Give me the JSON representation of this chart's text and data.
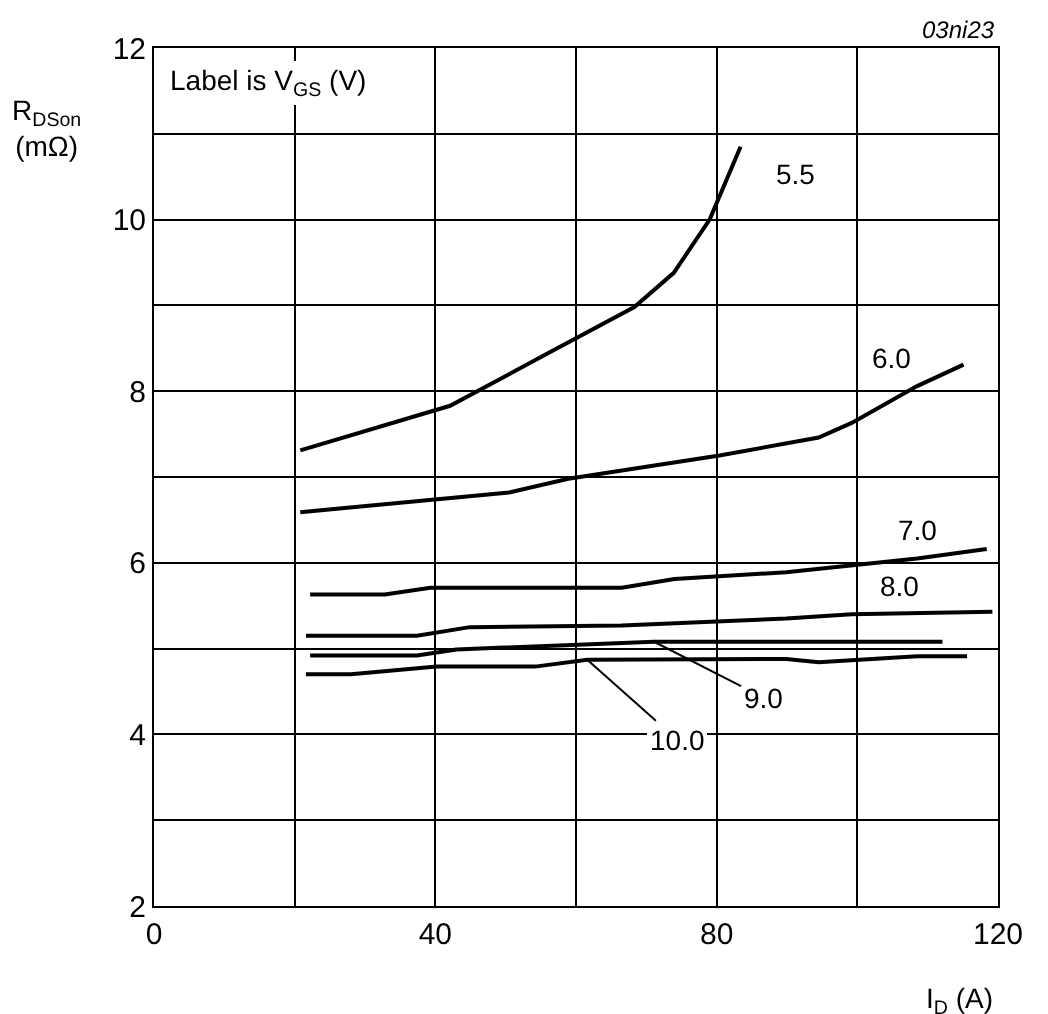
{
  "chart_data": {
    "type": "line",
    "xlabel": "I$_{D}$ (A)",
    "ylabel": "R$_{DSon}$\n(mΩ)",
    "annotations": [
      "Label is V$_{GS}$ (V)",
      "03ni23"
    ],
    "xlim": [
      0,
      120
    ],
    "ylim": [
      2,
      12
    ],
    "xticks": [
      0,
      {
        "value": 20,
        "label": null
      },
      40,
      {
        "value": 60,
        "label": null
      },
      80,
      {
        "value": 100,
        "label": null
      },
      120
    ],
    "yticks": [
      2,
      {
        "value": 3,
        "label": null
      },
      4,
      {
        "value": 5,
        "label": null
      },
      6,
      {
        "value": 7,
        "label": null
      },
      8,
      {
        "value": 9,
        "label": null
      },
      10,
      {
        "value": 11,
        "label": null
      },
      12
    ],
    "grid": true,
    "legend": false,
    "marker": "none",
    "line_style": "solid",
    "series": [
      {
        "name": "5.5",
        "color": "#000000",
        "x": [
          20.8,
          42.1,
          56.2,
          68.3,
          73.9,
          79.0,
          83.4
        ],
        "values": [
          7.31,
          7.83,
          8.45,
          8.98,
          9.38,
          10.0,
          10.85
        ]
      },
      {
        "name": "6.0",
        "color": "#000000",
        "x": [
          20.8,
          50.5,
          58.9,
          80.4,
          94.5,
          99.2,
          108.5,
          115.1
        ],
        "values": [
          6.59,
          6.82,
          6.98,
          7.25,
          7.46,
          7.63,
          8.06,
          8.31
        ]
      },
      {
        "name": "7.0",
        "color": "#000000",
        "x": [
          22.2,
          32.8,
          39.3,
          66.5,
          74.0,
          89.9,
          108.5,
          118.4
        ],
        "values": [
          5.63,
          5.63,
          5.71,
          5.71,
          5.81,
          5.89,
          6.05,
          6.16
        ]
      },
      {
        "name": "8.0",
        "color": "#000000",
        "x": [
          21.6,
          37.4,
          44.9,
          66.5,
          89.9,
          99.2,
          119.2
        ],
        "values": [
          5.15,
          5.15,
          5.25,
          5.27,
          5.35,
          5.4,
          5.43
        ]
      },
      {
        "name": "9.0",
        "color": "#000000",
        "x": [
          22.2,
          37.4,
          43.0,
          71.1,
          112.1
        ],
        "values": [
          4.92,
          4.92,
          4.99,
          5.08,
          5.08
        ]
      },
      {
        "name": "10.0",
        "color": "#000000",
        "x": [
          21.6,
          28.0,
          40.2,
          54.2,
          61.6,
          89.9,
          94.5,
          108.5,
          115.6
        ],
        "values": [
          4.7,
          4.7,
          4.79,
          4.79,
          4.87,
          4.88,
          4.84,
          4.91,
          4.91
        ]
      }
    ]
  }
}
